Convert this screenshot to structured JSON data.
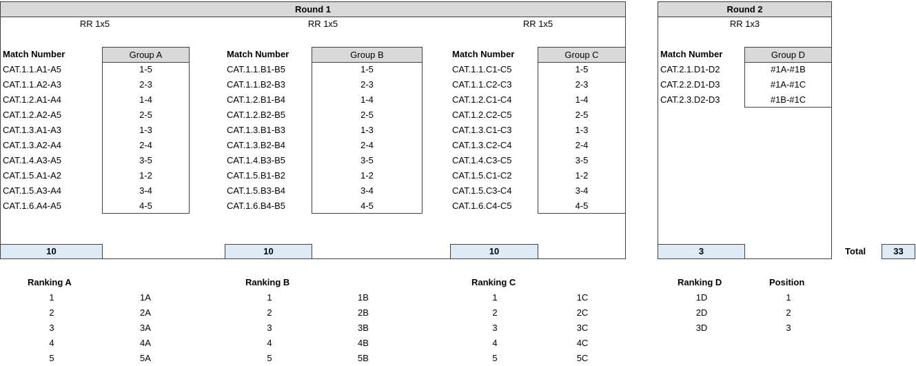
{
  "round1": {
    "title": "Round 1",
    "groups": [
      {
        "rr_label": "RR 1x5",
        "match_header": "Match Number",
        "group_label": "Group A",
        "matches": [
          "CAT.1.1.A1-A5",
          "CAT.1.1.A2-A3",
          "CAT.1.2.A1-A4",
          "CAT.1.2.A2-A5",
          "CAT.1.3.A1-A3",
          "CAT.1.3.A2-A4",
          "CAT.1.4.A3-A5",
          "CAT.1.5.A1-A2",
          "CAT.1.5.A3-A4",
          "CAT.1.6.A4-A5"
        ],
        "pairings": [
          "1-5",
          "2-3",
          "1-4",
          "2-5",
          "1-3",
          "2-4",
          "3-5",
          "1-2",
          "3-4",
          "4-5"
        ],
        "count": "10"
      },
      {
        "rr_label": "RR 1x5",
        "match_header": "Match Number",
        "group_label": "Group B",
        "matches": [
          "CAT.1.1.B1-B5",
          "CAT.1.1.B2-B3",
          "CAT.1.2.B1-B4",
          "CAT.1.2.B2-B5",
          "CAT.1.3.B1-B3",
          "CAT.1.3.B2-B4",
          "CAT.1.4.B3-B5",
          "CAT.1.5.B1-B2",
          "CAT.1.5.B3-B4",
          "CAT.1.6.B4-B5"
        ],
        "pairings": [
          "1-5",
          "2-3",
          "1-4",
          "2-5",
          "1-3",
          "2-4",
          "3-5",
          "1-2",
          "3-4",
          "4-5"
        ],
        "count": "10"
      },
      {
        "rr_label": "RR 1x5",
        "match_header": "Match Number",
        "group_label": "Group C",
        "matches": [
          "CAT.1.1.C1-C5",
          "CAT.1.1.C2-C3",
          "CAT.1.2.C1-C4",
          "CAT.1.2.C2-C5",
          "CAT.1.3.C1-C3",
          "CAT.1.3.C2-C4",
          "CAT.1.4.C3-C5",
          "CAT.1.5.C1-C2",
          "CAT.1.5.C3-C4",
          "CAT.1.6.C4-C5"
        ],
        "pairings": [
          "1-5",
          "2-3",
          "1-4",
          "2-5",
          "1-3",
          "2-4",
          "3-5",
          "1-2",
          "3-4",
          "4-5"
        ],
        "count": "10"
      }
    ]
  },
  "round2": {
    "title": "Round 2",
    "rr_label": "RR 1x3",
    "match_header": "Match Number",
    "group_label": "Group D",
    "matches": [
      "CAT.2.1.D1-D2",
      "CAT.2.2.D1-D3",
      "CAT.2.3.D2-D3"
    ],
    "pairings": [
      "#1A-#1B",
      "#1A-#1C",
      "#1B-#1C"
    ],
    "count": "3"
  },
  "total": {
    "label": "Total",
    "value": "33"
  },
  "rankings": [
    {
      "title": "Ranking A",
      "ranks": [
        "1",
        "2",
        "3",
        "4",
        "5"
      ],
      "seeds": [
        "1A",
        "2A",
        "3A",
        "4A",
        "5A"
      ]
    },
    {
      "title": "Ranking B",
      "ranks": [
        "1",
        "2",
        "3",
        "4",
        "5"
      ],
      "seeds": [
        "1B",
        "2B",
        "3B",
        "4B",
        "5B"
      ]
    },
    {
      "title": "Ranking C",
      "ranks": [
        "1",
        "2",
        "3",
        "4",
        "5"
      ],
      "seeds": [
        "1C",
        "2C",
        "3C",
        "4C",
        "5C"
      ]
    }
  ],
  "ranking_d": {
    "title": "Ranking D",
    "position_header": "Position",
    "seeds": [
      "1D",
      "2D",
      "3D"
    ],
    "positions": [
      "1",
      "2",
      "3"
    ]
  }
}
